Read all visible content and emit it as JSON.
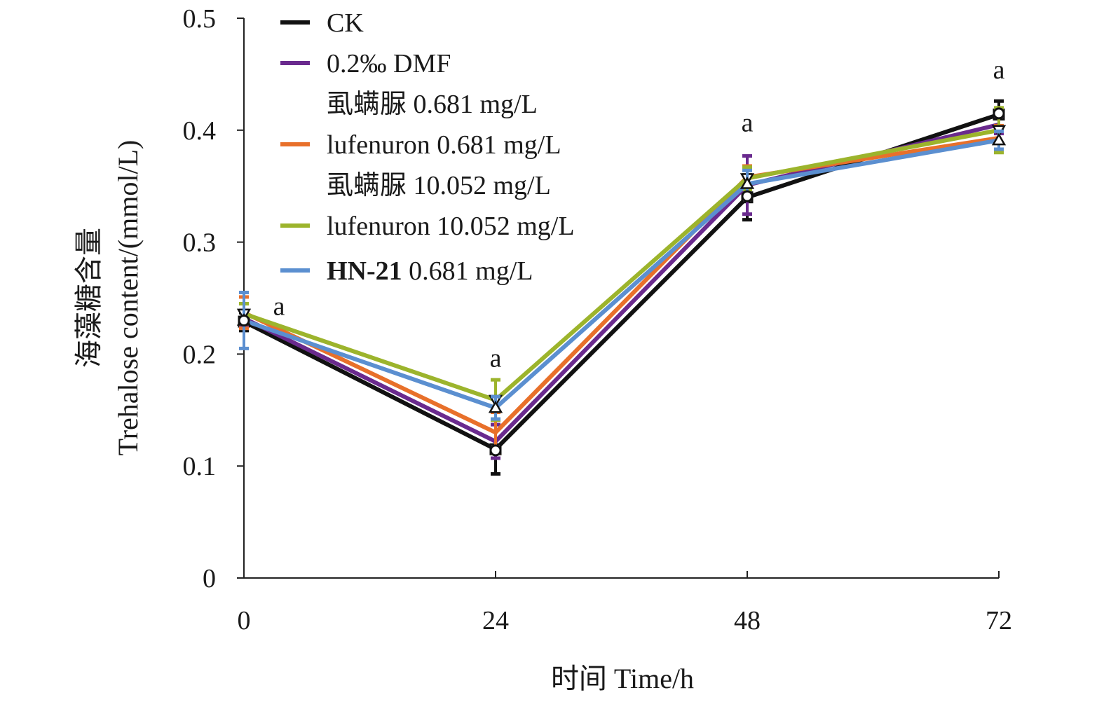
{
  "chart_data": {
    "type": "line",
    "xlabel": "时间 Time/h",
    "ylabel_line1": "海藻糖含量",
    "ylabel_line2": "Trehalose content/(mmol/L)",
    "x": [
      0,
      24,
      48,
      72
    ],
    "x_tick_labels": [
      "0",
      "24",
      "48",
      "72"
    ],
    "xlim": [
      0,
      72
    ],
    "ylim": [
      0,
      0.5
    ],
    "y_ticks": [
      0,
      0.1,
      0.2,
      0.3,
      0.4,
      0.5
    ],
    "y_tick_labels": [
      "0",
      "0.1",
      "0.2",
      "0.3",
      "0.4",
      "0.5"
    ],
    "grid": false,
    "legend_position": "top-left",
    "legend_entries": [
      {
        "text": "CK",
        "swatch": true,
        "color": "#111111"
      },
      {
        "text": "0.2‰ DMF",
        "swatch": true,
        "color": "#6a2a8e"
      },
      {
        "text": "虱螨脲 0.681 mg/L",
        "swatch": false
      },
      {
        "text": "lufenuron 0.681 mg/L",
        "swatch": true,
        "color": "#e8702a"
      },
      {
        "text": "虱螨脲 10.052 mg/L",
        "swatch": false
      },
      {
        "text": "lufenuron 10.052 mg/L",
        "swatch": true,
        "color": "#9cb42c"
      },
      {
        "text": "HN-21",
        "bold_part": true,
        "suffix": " 0.681 mg/L",
        "swatch": true,
        "color": "#5b8fd0"
      }
    ],
    "series": [
      {
        "name": "CK",
        "color": "#111111",
        "marker": "square",
        "values": [
          0.229,
          0.115,
          0.34,
          0.414
        ],
        "errors": [
          0.008,
          0.022,
          0.02,
          0.012
        ]
      },
      {
        "name": "0.2‰ DMF",
        "color": "#6a2a8e",
        "marker": "none",
        "values": [
          0.232,
          0.122,
          0.351,
          0.405
        ],
        "errors": [
          0.007,
          0.015,
          0.026,
          0.008
        ]
      },
      {
        "name": "虱螨脲 0.681 mg/L",
        "color": "#e8702a",
        "marker": "none",
        "values": [
          0.237,
          0.13,
          0.358,
          0.393
        ],
        "errors": [
          0.014,
          0.018,
          0.01,
          0.011
        ]
      },
      {
        "name": "虱螨脲 10.052 mg/L",
        "color": "#9cb42c",
        "marker": "triangle-down",
        "values": [
          0.236,
          0.159,
          0.357,
          0.4
        ],
        "errors": [
          0.009,
          0.018,
          0.01,
          0.02
        ]
      },
      {
        "name": "HN-21 0.681 mg/L",
        "color": "#5b8fd0",
        "marker": "triangle-up",
        "values": [
          0.23,
          0.152,
          0.352,
          0.391
        ],
        "errors": [
          0.025,
          0.01,
          0.012,
          0.008
        ]
      },
      {
        "name": "",
        "color": "#111111",
        "marker": "circle",
        "line": false,
        "values": [
          0.23,
          0.114,
          0.341,
          0.415
        ],
        "errors": [
          0,
          0,
          0,
          0
        ]
      }
    ],
    "annotations": [
      {
        "x": 0,
        "y": 0.23,
        "text": "a"
      },
      {
        "x": 24,
        "y": 0.16,
        "text": "a"
      },
      {
        "x": 48,
        "y": 0.36,
        "text": "a"
      },
      {
        "x": 72,
        "y": 0.415,
        "text": "a"
      }
    ]
  }
}
